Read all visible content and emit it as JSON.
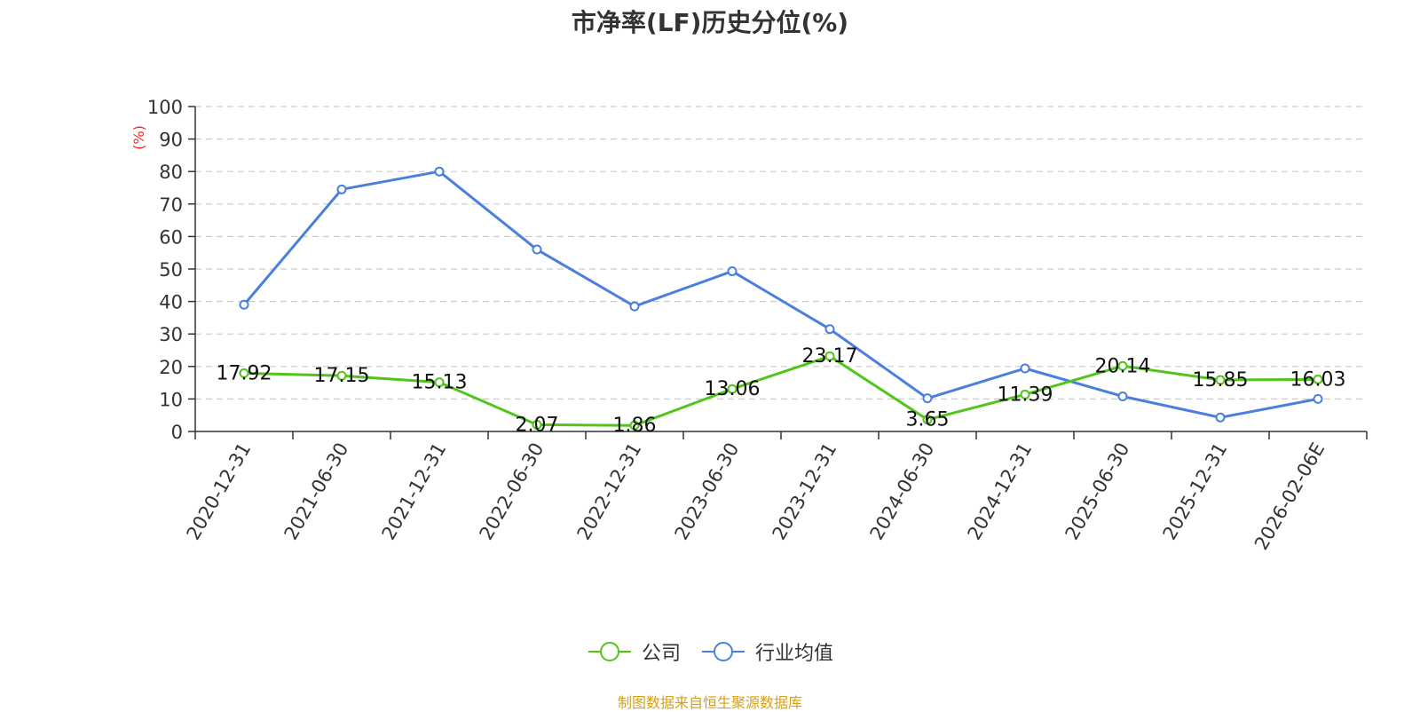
{
  "chart_data": {
    "type": "line",
    "title": "市净率(LF)历史分位(%)",
    "ylabel": "(%)",
    "ylim": [
      0,
      100
    ],
    "yticks": [
      0,
      10,
      20,
      30,
      40,
      50,
      60,
      70,
      80,
      90,
      100
    ],
    "grid": true,
    "legend_position": "bottom",
    "categories": [
      "2020-12-31",
      "2021-06-30",
      "2021-12-31",
      "2022-06-30",
      "2022-12-31",
      "2023-06-30",
      "2023-12-31",
      "2024-06-30",
      "2024-12-31",
      "2025-06-30",
      "2025-12-31",
      "2026-02-06E"
    ],
    "series": [
      {
        "name": "公司",
        "color": "#52c41a",
        "show_labels": true,
        "values": [
          17.92,
          17.15,
          15.13,
          2.07,
          1.86,
          13.06,
          23.17,
          3.65,
          11.39,
          20.14,
          15.85,
          16.03
        ]
      },
      {
        "name": "行业均值",
        "color": "#4a7fe0",
        "show_labels": false,
        "values": [
          39,
          74.5,
          80,
          56,
          38.5,
          49.3,
          31.5,
          10.2,
          19.4,
          10.8,
          4.3,
          10
        ]
      }
    ]
  },
  "source_note": "制图数据来自恒生聚源数据库"
}
